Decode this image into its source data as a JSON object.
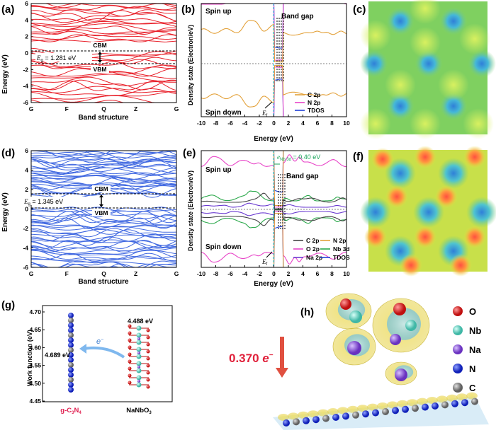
{
  "panels": {
    "a": {
      "label": "(a)",
      "ylabel": "Energy (eV)",
      "xlabel": "Band structure",
      "yticks": [
        "6",
        "4",
        "2",
        "0",
        "-2",
        "-4",
        "-6"
      ],
      "xticks": [
        "G",
        "F",
        "Q",
        "Z",
        "G"
      ],
      "cbm": "CBM",
      "vbm": "VBM",
      "gap_symbol": "E",
      "gap_sub": "g",
      "gap_value": " = 1.281 eV",
      "line_color": "#e8202a"
    },
    "b": {
      "label": "(b)",
      "spin_up": "Spin up",
      "spin_down": "Spin down",
      "band_gap": "Band gap",
      "ef": "E",
      "ef_sub": "f",
      "ylabel": "Density state (Electron/eV)",
      "xlabel": "Energy (eV)",
      "xticks": [
        "-10",
        "-8",
        "-6",
        "-4",
        "-2",
        "0",
        "2",
        "4",
        "6",
        "8",
        "10"
      ],
      "legend": [
        {
          "name": "C 2p",
          "color": "#e3a13a"
        },
        {
          "name": "N 2p",
          "color": "#e845c8"
        },
        {
          "name": "TDOS",
          "color": "#1f3fd6"
        }
      ]
    },
    "c": {
      "label": "(c)"
    },
    "d": {
      "label": "(d)",
      "ylabel": "Energy (eV)",
      "xlabel": "Band structure",
      "yticks": [
        "6",
        "4",
        "2",
        "0",
        "-2",
        "-4",
        "-6"
      ],
      "xticks": [
        "G",
        "F",
        "Q",
        "Z",
        "G"
      ],
      "cbm": "CBM",
      "vbm": "VBM",
      "gap_symbol": "E",
      "gap_sub": "g",
      "gap_value": " = 1.345 eV",
      "line_color": "#4169e1"
    },
    "e": {
      "label": "(e)",
      "spin_up": "Spin up",
      "spin_down": "Spin down",
      "band_gap": "Band gap",
      "ef": "E",
      "ef_sub": "f",
      "annotation_sym": "e",
      "annotation_sub": "Nb 3d",
      "annotation_val": " = 0.40 eV",
      "ylabel": "Density state (Electron/eV)",
      "xlabel": "Energy (eV)",
      "xticks": [
        "-10",
        "-8",
        "-6",
        "-4",
        "-2",
        "0",
        "2",
        "4",
        "6",
        "8",
        "10"
      ],
      "legend": [
        {
          "name": "C 2p",
          "color": "#444444"
        },
        {
          "name": "N 2p",
          "color": "#e3a13a"
        },
        {
          "name": "O 2p",
          "color": "#e845c8"
        },
        {
          "name": "Nb 3d",
          "color": "#2aa84a"
        },
        {
          "name": "Na 2p",
          "color": "#6a3ad0"
        },
        {
          "name": "TDOS",
          "color": "#1f3fd6"
        }
      ]
    },
    "f": {
      "label": "(f)"
    },
    "g": {
      "label": "(g)",
      "ylabel": "Work function (eV)",
      "yticks": [
        "4.70",
        "4.65",
        "4.60",
        "4.55",
        "4.50",
        "4.45"
      ],
      "val_left": "4.689 eV",
      "val_right": "4.488 eV",
      "electron": "e",
      "electron_sup": "−",
      "name_left": "g-C",
      "name_left_sub3": "3",
      "name_left_N": "N",
      "name_left_sub4": "4",
      "name_right": "NaNbO",
      "name_right_sub": "3"
    },
    "h": {
      "label": "(h)",
      "transfer": "0.370 ",
      "transfer_e": "e",
      "transfer_sup": "−",
      "legend": [
        {
          "name": "O",
          "color": "#e02020"
        },
        {
          "name": "Nb",
          "color": "#6fd6c6"
        },
        {
          "name": "Na",
          "color": "#8c5ad8"
        },
        {
          "name": "N",
          "color": "#2b3fe0"
        },
        {
          "name": "C",
          "color": "#8a8a8a"
        }
      ]
    }
  }
}
